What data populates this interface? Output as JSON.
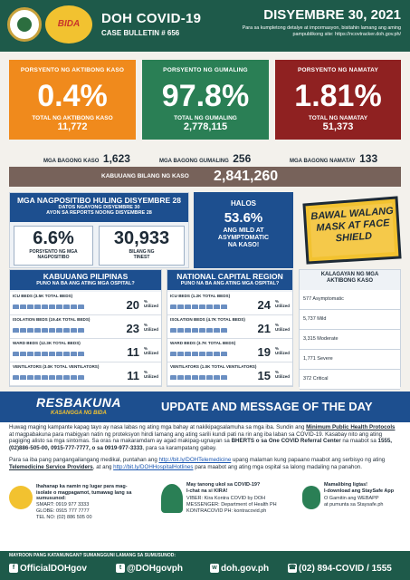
{
  "header": {
    "bida_logo": "BIDA",
    "title": "DOH COVID-19",
    "bulletin": "CASE BULLETIN # 656",
    "date": "DISYEMBRE 30, 2021",
    "note": "Para sa kumpletong detalye at impormasyon, bisitahin lamang ang aming pampublikong site: https://ncovtracker.doh.gov.ph/"
  },
  "cards": [
    {
      "label": "PORSYENTO NG AKTIBONG KASO",
      "big": "0.4%",
      "sublabel": "TOTAL NG AKTIBONG KASO",
      "number": "11,772",
      "new_label": "MGA BAGONG KASO",
      "new_value": "1,623"
    },
    {
      "label": "PORSYENTO NG GUMALING",
      "big": "97.8%",
      "sublabel": "TOTAL NG GUMALING",
      "number": "2,778,115",
      "new_label": "MGA BAGONG GUMALING",
      "new_value": "256"
    },
    {
      "label": "PORSYENTO NG NAMATAY",
      "big": "1.81%",
      "sublabel": "TOTAL NG NAMATAY",
      "number": "51,373",
      "new_label": "MGA BAGONG NAMATAY",
      "new_value": "133"
    }
  ],
  "total": {
    "label": "KABUUANG BILANG NG KASO",
    "value": "2,841,260"
  },
  "positivity": {
    "title": "MGA NAGPOSITIBO HULING DISYEMBRE 28",
    "sub1": "DATOS NGAYONG DISYEMBRE 30",
    "sub2": "AYON SA REPORTS NOONG DISYEMBRE 28",
    "pct": "6.6%",
    "pct_label": "PORSYENTO NG MGA NAGPOSITIBO",
    "tested": "30,933",
    "tested_label": "BILANG NG TINEST"
  },
  "halos": {
    "l1": "HALOS",
    "pct": "53.6%",
    "l2": "ANG MILD AT ASYMPTOMATIC",
    "l3": "NA KASO!"
  },
  "mask": {
    "text": "BAWAL WALANG MASK AT FACE SHIELD"
  },
  "ph": {
    "title": "KABUUANG PILIPINAS",
    "sub": "PUNO NA BA ANG ATING MGA OSPITAL?",
    "rows": [
      {
        "label": "ICU BEDS (3.5K TOTAL BEDS)",
        "pct": "20",
        "unit": "%",
        "util": "Utilized"
      },
      {
        "label": "ISOLATION BEDS (19.4K TOTAL BEDS)",
        "pct": "23",
        "unit": "%",
        "util": "Utilized"
      },
      {
        "label": "WARD BEDS (12.3K TOTAL BEDS)",
        "pct": "11",
        "unit": "%",
        "util": "Utilized"
      },
      {
        "label": "VENTILATORS (3.0K TOTAL VENTILATORS)",
        "pct": "11",
        "unit": "%",
        "util": "Utilized"
      }
    ]
  },
  "ncr": {
    "title": "NATIONAL CAPITAL REGION",
    "sub": "PUNO NA BA ANG ATING MGA OSPITAL?",
    "rows": [
      {
        "label": "ICU BEDS (1.2K TOTAL BEDS)",
        "pct": "24",
        "unit": "%",
        "util": "Utilized"
      },
      {
        "label": "ISOLATION BEDS (4.7K TOTAL BEDS)",
        "pct": "21",
        "unit": "%",
        "util": "Utilized"
      },
      {
        "label": "WARD BEDS (3.7K TOTAL BEDS)",
        "pct": "19",
        "unit": "%",
        "util": "Utilized"
      },
      {
        "label": "VENTILATORS (1.0K TOTAL VENTILATORS)",
        "pct": "15",
        "unit": "%",
        "util": "Utilized"
      }
    ]
  },
  "kalagayan": {
    "title": "KALAGAYAN NG MGA AKTIBONG KASO",
    "items": [
      "577 Asymptomatic",
      "5,737 Mild",
      "3,315 Moderate",
      "1,771 Severe",
      "372 Critical"
    ]
  },
  "update": {
    "logo1": "RESBAKUNA",
    "logo2": "KASANGGA NG BIDA",
    "title": "UPDATE AND MESSAGE OF THE DAY",
    "p1a": "Huwag maging kampante kapag tayo ay nasa labas ng ating mga bahay at nakikipagsalamuha sa mga iba. Sundin ang ",
    "p1b": "Minimum Public Health Protocols",
    "p1c": " at magpabakuna para mabigyan natin ng proteksyon hindi lamang ang ating sarili kundi pati na rin ang iba laban sa COVID-19. Kasabay nito ang ating pagiging alisto sa mga sintomas. Sa oras na makaramdam ay agad makipag-ugnayan sa ",
    "p1d": "BHERTS o sa One COVID Referral Center",
    "p1e": " na maabot sa ",
    "p1f": "1555, (02)886-505-00, 0915-777-7777, o sa 0919-977-3333",
    "p1g": ", para sa karampatang gabay.",
    "p2a": "Para sa iba pang pangangailangang medikal, puntahan ang ",
    "p2b": "http://bit.ly/DOHTelemedicine",
    "p2c": " upang malaman kung papaano maabot ang serbisyo ng ating ",
    "p2d": "Telemedicine Service Providers",
    "p2e": ", at ang ",
    "p2f": "http://bit.ly/DOHHospitalHotlines",
    "p2g": " para maabot ang ating mga ospital sa lalong madaling na panahon."
  },
  "footer": {
    "c1": "Ihahanap ka namin ng lugar para mag-isolate o magpagamot, tumawag lang sa sumusunod:",
    "smart": "SMART: 0919 977 3333",
    "globe": "GLOBE: 0915 777 7777",
    "tel": "TEL NO: (02) 886 505 00",
    "c2a": "May tanong ukol sa COVID-19?",
    "c2b": "I-chat na si KIRA!",
    "viber": "VIBER: Kira Kontra COVID by DOH",
    "messenger": "MESSENGER: Department of Health PH",
    "kontra": "KONTRACOVID PH: kontracovid.ph",
    "c3a": "Mamalibing ligtas!",
    "c3b": "I-download ang StaySafe App",
    "c3c": "O Gamitin ang WEBAPP",
    "c3d": "at pumunta sa Staysafe.ph"
  },
  "social": {
    "label": "MAYROON PANG KATANUNGAN? SUMANGGUNI LAMANG SA SUMUSUNOD:",
    "fb": "OfficialDOHgov",
    "tw": "@DOHgovph",
    "web": "doh.gov.ph",
    "phone": "(02) 894-COVID  /  1555"
  }
}
